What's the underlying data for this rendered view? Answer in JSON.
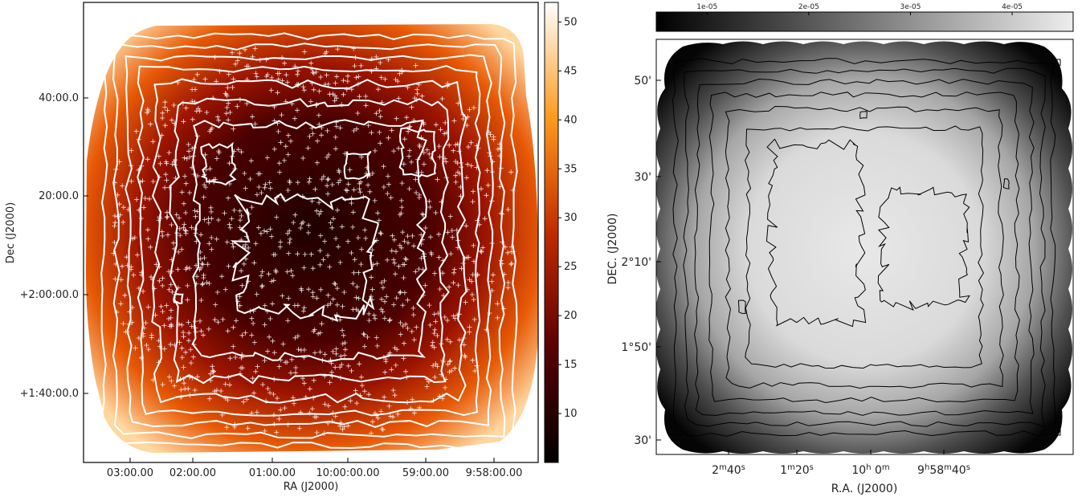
{
  "chart_data": [
    {
      "type": "heatmap",
      "xlabel": "RA (J2000)",
      "ylabel": "Dec (J2000)",
      "xticks": [
        "03:00.00",
        "02:00.00",
        "01:00.00",
        "10:00:00.00",
        "59:00.00",
        "9:58:00.00"
      ],
      "yticks": [
        "40:00.0",
        "20:00.0",
        "+2:00:00.0",
        "+1:40:00.0"
      ],
      "colorbar": {
        "ticks": [
          10,
          15,
          20,
          25,
          30,
          35,
          40,
          45,
          50
        ],
        "range": [
          5,
          52
        ],
        "colormap": "afmhot"
      },
      "contour_color": "#ffffff",
      "marker": "+",
      "marker_color": "#ffffff",
      "grid": false
    },
    {
      "type": "heatmap",
      "xlabel": "R.A. (J2000)",
      "ylabel": "DEC. (J2000)",
      "xticks": [
        {
          "main": "2",
          "sup": "m",
          "rest": "40",
          "sup2": "s"
        },
        {
          "main": "1",
          "sup": "m",
          "rest": "20",
          "sup2": "s"
        },
        {
          "main": "10",
          "sup": "h",
          "rest": " 0",
          "sup2": "m"
        },
        {
          "main": "9",
          "sup": "h",
          "rest": "58",
          "sup2": "m",
          "rest2": "40",
          "sup3": "s"
        }
      ],
      "yticks": [
        "50'",
        "30'",
        "2°10'",
        "1°50'",
        "30'"
      ],
      "colorbar": {
        "ticks": [
          "1e-05",
          "2e-05",
          "3e-05",
          "4e-05"
        ],
        "range": [
          5e-06,
          4.6e-05
        ],
        "colormap": "gray"
      },
      "contour_color": "#000000",
      "grid": false
    }
  ]
}
